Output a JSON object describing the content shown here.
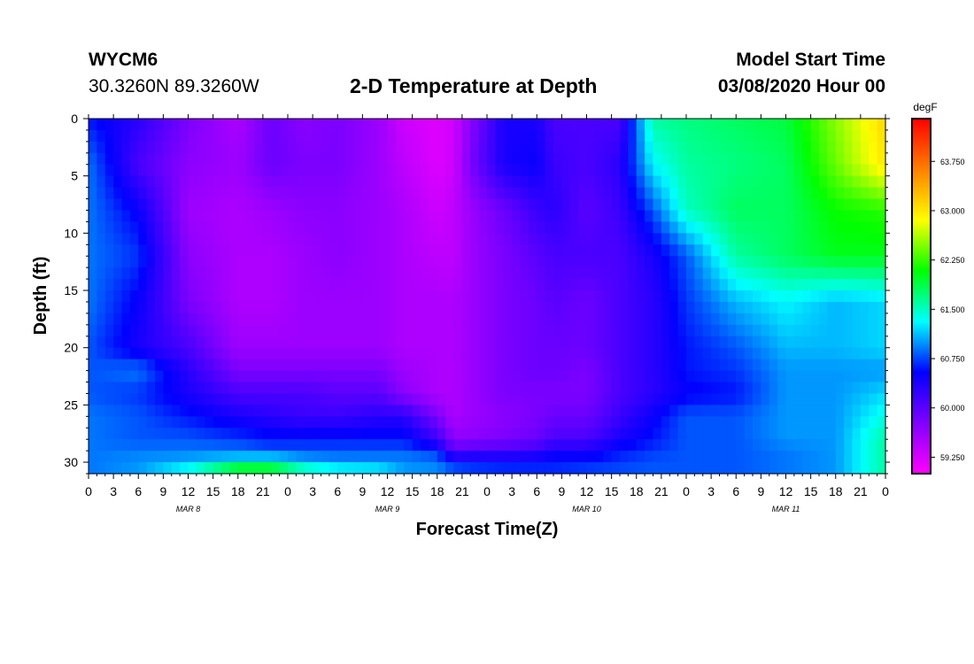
{
  "header": {
    "station": "WYCM6",
    "coords": "30.3260N 89.3260W",
    "title": "2-D Temperature at Depth",
    "start_label": "Model Start Time",
    "start_value": "03/08/2020 Hour 00"
  },
  "chart_data": {
    "type": "heatmap",
    "title": "2-D Temperature at Depth",
    "xlabel": "Forecast Time(Z)",
    "ylabel": "Depth (ft)",
    "x_tick_labels": [
      "0",
      "3",
      "6",
      "9",
      "12",
      "15",
      "18",
      "21",
      "0",
      "3",
      "6",
      "9",
      "12",
      "15",
      "18",
      "21",
      "0",
      "3",
      "6",
      "9",
      "12",
      "15",
      "18",
      "21",
      "0",
      "3",
      "6",
      "9",
      "12",
      "15",
      "18",
      "21",
      "0"
    ],
    "date_labels": [
      {
        "label": "MAR 8",
        "hour": 12
      },
      {
        "label": "MAR 9",
        "hour": 36
      },
      {
        "label": "MAR 10",
        "hour": 60
      },
      {
        "label": "MAR 11",
        "hour": 84
      }
    ],
    "xlim_hours": [
      0,
      96
    ],
    "ylim": [
      0,
      31
    ],
    "y_ticks": [
      0,
      5,
      10,
      15,
      20,
      25,
      30
    ],
    "y_inverted": true,
    "colorbar": {
      "units": "degF",
      "range": [
        59.0,
        64.4
      ],
      "tick_values": [
        59.25,
        60.0,
        60.75,
        61.5,
        62.25,
        63.0,
        63.75
      ],
      "tick_labels": [
        "59.250",
        "60.000",
        "60.750",
        "61.500",
        "62.250",
        "63.000",
        "63.750"
      ],
      "colors": [
        "#ff00ff",
        "#8000ff",
        "#0000ff",
        "#00ffff",
        "#00ff00",
        "#ffff00",
        "#ff8000",
        "#ff0000"
      ]
    },
    "depths_ft": [
      0,
      4,
      8,
      12,
      16,
      20,
      22,
      24,
      26,
      28,
      29,
      30,
      31
    ],
    "times_hours": [
      0,
      6,
      12,
      18,
      22,
      26,
      30,
      35,
      38,
      42,
      44,
      46,
      50,
      54,
      56,
      60,
      64,
      68,
      72,
      78,
      84,
      90,
      96
    ],
    "values_degF": [
      [
        60.6,
        60.3,
        59.8,
        59.5,
        59.9,
        59.7,
        59.8,
        59.6,
        59.3,
        59.2,
        59.3,
        59.7,
        60.4,
        60.4,
        60.1,
        60.1,
        60.1,
        61.6,
        61.7,
        61.8,
        61.9,
        62.5,
        63.1
      ],
      [
        60.9,
        60.1,
        59.7,
        59.6,
        59.9,
        59.8,
        59.8,
        59.6,
        59.4,
        59.2,
        59.3,
        59.8,
        60.4,
        60.5,
        60.2,
        60.1,
        60.3,
        61.3,
        61.6,
        61.7,
        61.8,
        62.4,
        63.0
      ],
      [
        60.9,
        60.5,
        59.6,
        59.5,
        59.6,
        59.7,
        59.7,
        59.6,
        59.5,
        59.3,
        59.4,
        59.6,
        59.9,
        60.2,
        60.3,
        60.0,
        60.2,
        60.8,
        61.5,
        61.8,
        61.8,
        62.1,
        62.2
      ],
      [
        60.9,
        60.7,
        59.7,
        59.5,
        59.5,
        59.6,
        59.7,
        59.6,
        59.5,
        59.4,
        59.4,
        59.6,
        59.8,
        60.0,
        60.1,
        60.1,
        60.1,
        60.4,
        60.8,
        61.6,
        61.8,
        62.0,
        62.0
      ],
      [
        60.9,
        60.5,
        59.8,
        59.5,
        59.5,
        59.6,
        59.6,
        59.6,
        59.5,
        59.5,
        59.5,
        59.6,
        59.8,
        59.9,
        60.0,
        59.9,
        60.1,
        60.3,
        60.7,
        61.1,
        61.3,
        61.1,
        61.2
      ],
      [
        60.8,
        60.4,
        60.1,
        59.6,
        59.6,
        59.6,
        59.6,
        59.6,
        59.5,
        59.5,
        59.5,
        59.6,
        59.8,
        59.9,
        59.9,
        59.9,
        60.1,
        60.3,
        60.6,
        60.8,
        61.1,
        61.1,
        61.2
      ],
      [
        60.8,
        60.9,
        60.3,
        59.8,
        59.8,
        59.8,
        59.8,
        59.8,
        59.6,
        59.5,
        59.5,
        59.6,
        59.8,
        59.9,
        59.9,
        59.8,
        60.1,
        60.3,
        60.6,
        60.7,
        61.0,
        61.0,
        61.0
      ],
      [
        60.8,
        60.7,
        60.4,
        60.1,
        60.1,
        60.1,
        60.0,
        60.0,
        59.7,
        59.5,
        59.5,
        59.6,
        59.8,
        59.8,
        59.8,
        59.8,
        60.1,
        60.3,
        60.5,
        60.6,
        61.0,
        61.0,
        61.2
      ],
      [
        60.9,
        60.8,
        60.6,
        60.4,
        60.3,
        60.2,
        60.2,
        60.3,
        60.3,
        59.8,
        59.5,
        59.6,
        59.7,
        59.8,
        59.9,
        59.9,
        60.2,
        60.5,
        60.8,
        60.8,
        61.0,
        61.0,
        61.4
      ],
      [
        60.9,
        60.8,
        60.8,
        60.7,
        60.6,
        60.6,
        60.6,
        60.6,
        60.6,
        60.2,
        59.7,
        59.7,
        59.8,
        59.9,
        60.1,
        60.1,
        60.4,
        60.6,
        60.8,
        60.8,
        61.0,
        61.0,
        61.6
      ],
      [
        60.9,
        60.9,
        60.9,
        60.9,
        60.8,
        60.8,
        60.8,
        60.8,
        60.8,
        60.6,
        60.0,
        60.1,
        60.1,
        60.2,
        60.4,
        60.4,
        60.6,
        60.7,
        60.8,
        60.8,
        60.9,
        61.0,
        61.6
      ],
      [
        60.9,
        61.0,
        61.1,
        61.3,
        61.4,
        61.1,
        61.0,
        61.0,
        61.0,
        61.0,
        60.6,
        60.6,
        60.6,
        60.6,
        60.6,
        60.6,
        60.7,
        60.8,
        60.8,
        60.8,
        60.9,
        61.0,
        61.6
      ],
      [
        60.9,
        61.0,
        61.5,
        62.5,
        62.4,
        61.8,
        61.5,
        61.4,
        61.0,
        60.9,
        60.9,
        60.8,
        60.7,
        60.7,
        60.7,
        60.8,
        60.8,
        60.8,
        60.8,
        60.8,
        60.9,
        61.0,
        61.6
      ]
    ]
  }
}
